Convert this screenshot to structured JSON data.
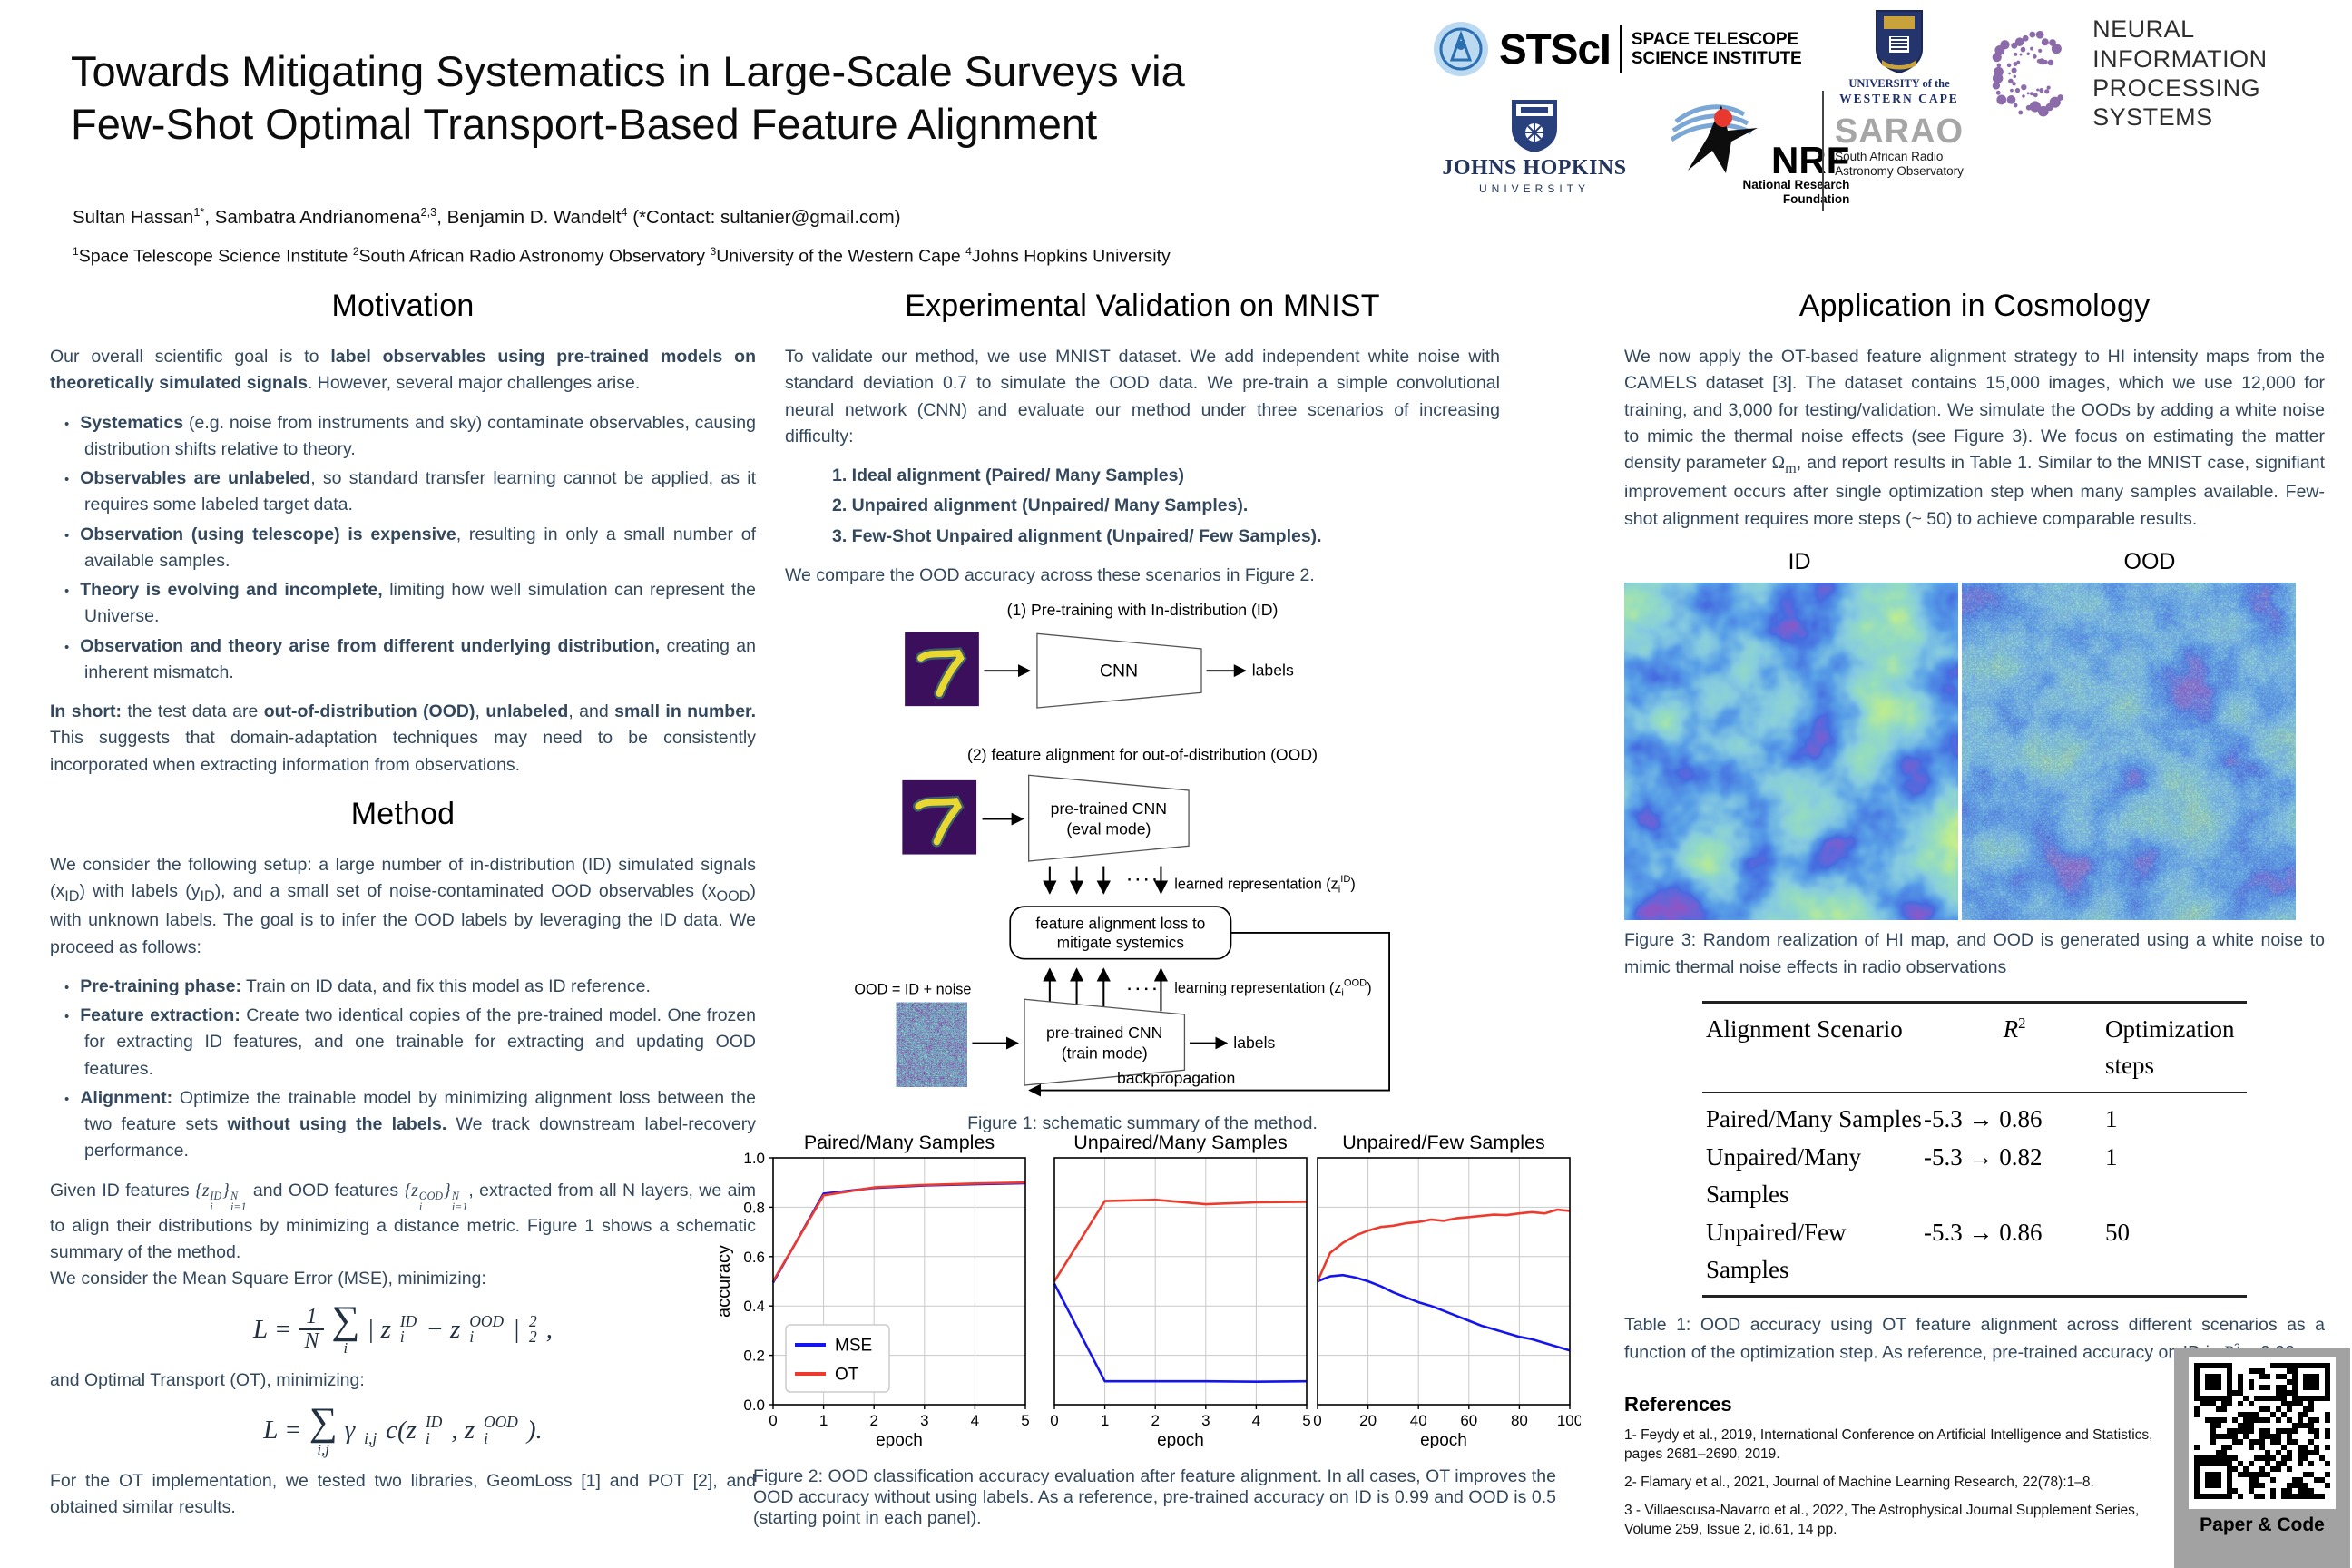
{
  "header": {
    "title_line1": "Towards Mitigating Systematics in Large-Scale Surveys via",
    "title_line2": "Few-Shot Optimal Transport-Based Feature Alignment",
    "authors": {
      "a1": "Sultan Hassan",
      "a1s": "1*",
      "a2": ", Sambatra Andrianomena",
      "a2s": "2,3",
      "a3": ", Benjamin D. Wandelt",
      "a3s": "4",
      "contact": "  (*Contact: sultanier@gmail.com)"
    },
    "affiliations": {
      "s1": "1",
      "t1": "Space Telescope Science Institute ",
      "s2": "2",
      "t2": "South African Radio Astronomy Observatory ",
      "s3": "3",
      "t3": "University of the Western Cape ",
      "s4": "4",
      "t4": "Johns Hopkins University"
    }
  },
  "logos": {
    "stsci": {
      "abbr": "STScI",
      "line1": "SPACE TELESCOPE",
      "line2": "SCIENCE INSTITUTE"
    },
    "jhu": {
      "name": "JOHNS HOPKINS",
      "sub": "UNIVERSITY"
    },
    "nrf": {
      "abbr": "NRF",
      "line1": "National Research",
      "line2": "Foundation"
    },
    "sarao": {
      "abbr": "SARAO",
      "line1": "South African Radio",
      "line2": "Astronomy Observatory"
    },
    "uwc": {
      "line1": "UNIVERSITY of the",
      "line2": "WESTERN CAPE"
    },
    "neurips": {
      "line1": "NEURAL INFORMATION",
      "line2": "PROCESSING SYSTEMS"
    }
  },
  "col1": {
    "heading": "Motivation",
    "p1a": "Our overall scientific goal is to ",
    "p1b": "label observables using pre-trained models on theoretically simulated signals",
    "p1c": ". However, several major challenges arise.",
    "bullets": [
      {
        "b": "Systematics",
        "t": " (e.g. noise from instruments and sky) contaminate observables, causing distribution shifts relative to theory."
      },
      {
        "b": "Observables are unlabeled",
        "t": ", so standard transfer learning cannot be applied, as it requires some labeled target data."
      },
      {
        "b": "Observation (using telescope) is expensive",
        "t": ", resulting in only a small number of available samples."
      },
      {
        "b": "Theory is evolving and incomplete,",
        "t": " limiting how well simulation can represent the Universe."
      },
      {
        "b": "Observation and theory arise from different underlying distribution,",
        "t": " creating an inherent mismatch."
      }
    ],
    "p2a": "In short:",
    "p2b": " the test data are ",
    "p2c": "out-of-distribution (OOD)",
    "p2d": ", ",
    "p2e": "unlabeled",
    "p2f": ", and ",
    "p2g": "small in number.",
    "p2h": " This suggests that domain-adaptation techniques may need to be consistently incorporated when extracting information from observations.",
    "heading2": "Method",
    "p3a": "We consider the following setup: a large number of in-distribution (ID) simulated signals (x",
    "p3s1": "ID",
    "p3b": ") with labels (y",
    "p3s2": "ID",
    "p3c": "), and a small set of noise-contaminated OOD observables (x",
    "p3s3": "OOD",
    "p3d": ") with unknown labels. The goal is to infer the OOD labels by leveraging the ID data. We proceed as follows:",
    "mbullets": [
      {
        "b": "Pre-training phase:",
        "t": " Train on ID data, and fix this model as ID reference.",
        "b2": "",
        "t2": ""
      },
      {
        "b": "Feature extraction:",
        "t": " Create two identical copies of the pre-trained model. One frozen for extracting ID features, and one trainable for extracting and updating OOD features.",
        "b2": "",
        "t2": ""
      },
      {
        "b": "Alignment:",
        "t": " Optimize the trainable model by minimizing alignment loss between the two feature sets ",
        "b2": "without using the labels.",
        "t2": " We track downstream label-recovery performance."
      }
    ],
    "p4a": "Given ID features ",
    "m1": "{z",
    "m1sup": "ID",
    "m1sub": "i",
    "m1c": "}",
    "m1osup": "N",
    "m1osub": "i=1",
    "p4b": " and OOD features ",
    "m2": "{z",
    "m2sup": "OOD",
    "m2sub": "i",
    "m2c": "}",
    "m2osup": "N",
    "m2osub": "i=1",
    "p4c": ", extracted from all N layers, we aim to align their distributions by minimizing a distance metric. Figure 1 shows a schematic summary of the method.",
    "p4d": "We consider the Mean Square Error (MSE), minimizing:",
    "eq1": {
      "lhs": "L =",
      "num": "1",
      "den": "N",
      "op": "∑",
      "opsub": "i",
      "t1": "| z",
      "z1sup": "ID",
      "z1sub": "i",
      "t2": "− z",
      "z2sup": "OOD",
      "z2sub": "i",
      "t3": "|",
      "esup": "2",
      "esub": "2",
      "t4": ","
    },
    "p5": "and Optimal Transport (OT), minimizing:",
    "eq2": {
      "lhs": "L =",
      "op": "∑",
      "opsub": "i,j",
      "g": "γ",
      "gsub": "i,j",
      "t1": "c(z",
      "z1sup": "ID",
      "z1sub": "i",
      "t2": ", z",
      "z2sup": "OOD",
      "z2sub": "i",
      "t3": ")."
    },
    "p6": "For the OT implementation, we tested two libraries, GeomLoss [1] and POT [2], and obtained similar results."
  },
  "col2": {
    "heading": "Experimental Validation on MNIST",
    "p1": "To validate our method, we use MNIST dataset. We add independent white noise with standard deviation 0.7 to simulate the OOD data. We pre-train a simple convolutional neural network (CNN) and evaluate our method under three scenarios of increasing difficulty:",
    "items": [
      "1. Ideal alignment (Paired/ Many Samples)",
      "2. Unpaired alignment (Unpaired/ Many Samples).",
      "3. Few-Shot Unpaired alignment (Unpaired/ Few Samples)."
    ],
    "p2": "We compare the OOD accuracy across these scenarios in Figure 2.",
    "fig1_caption": "Figure 1:  schematic summary of the method.",
    "fig2_caption": "Figure 2:  OOD classification accuracy evaluation after feature alignment. In all cases, OT improves the OOD accuracy without using labels. As a reference, pre-trained accuracy on ID is 0.99 and OOD is 0.5 (starting point in each panel)."
  },
  "fig1": {
    "step1": "(1) Pre-training with In-distribution (ID)",
    "cnn": "CNN",
    "labels1": "labels",
    "step2": "(2) feature alignment for out-of-distribution (OOD)",
    "pt1a": "pre-trained CNN",
    "pt1b": "(eval mode)",
    "learned_a": "learned representation (z",
    "learned_sub": "i",
    "learned_sup": "ID",
    "learned_b": ")",
    "loss1": "feature alignment loss to",
    "loss2": "mitigate systemics",
    "learning_a": "learning representation (z",
    "learning_sub": "i",
    "learning_sup": "OOD",
    "learning_b": ")",
    "ood": "OOD = ID + noise",
    "pt2a": "pre-trained CNN",
    "pt2b": "(train mode)",
    "labels2": "labels",
    "backprop": "backpropagation",
    "dots1": "∙ ∙ ∙ ∙",
    "dots2": "∙ ∙ ∙ ∙"
  },
  "chart_data": [
    {
      "type": "line",
      "title": "Paired/Many Samples",
      "xlabel": "epoch",
      "ylabel": "accuracy",
      "xlim": [
        0,
        5
      ],
      "ylim": [
        0.0,
        1.0
      ],
      "grid": true,
      "legend_position": "lower left",
      "xticks": [
        0,
        1,
        2,
        3,
        4,
        5
      ],
      "yticks": [
        "0.0",
        "0.2",
        "0.4",
        "0.6",
        "0.8",
        "1.0"
      ],
      "x": [
        0,
        1,
        2,
        3,
        4,
        5
      ],
      "series": [
        {
          "name": "MSE",
          "color": "#1414f0",
          "values": [
            0.495,
            0.855,
            0.878,
            0.888,
            0.893,
            0.897
          ]
        },
        {
          "name": "OT",
          "color": "#ee3a2c",
          "values": [
            0.5,
            0.848,
            0.88,
            0.89,
            0.896,
            0.9
          ]
        }
      ]
    },
    {
      "type": "line",
      "title": "Unpaired/Many Samples",
      "xlabel": "epoch",
      "xlim": [
        0,
        5
      ],
      "ylim": [
        0.0,
        1.0
      ],
      "grid": true,
      "xticks": [
        0,
        1,
        2,
        3,
        4,
        5
      ],
      "x": [
        0,
        1,
        2,
        3,
        4,
        5
      ],
      "series": [
        {
          "name": "MSE",
          "color": "#1414f0",
          "values": [
            0.49,
            0.095,
            0.095,
            0.095,
            0.093,
            0.095
          ]
        },
        {
          "name": "OT",
          "color": "#ee3a2c",
          "values": [
            0.5,
            0.825,
            0.83,
            0.812,
            0.82,
            0.822
          ]
        }
      ]
    },
    {
      "type": "line",
      "title": "Unpaired/Few Samples",
      "xlabel": "epoch",
      "xlim": [
        0,
        100
      ],
      "ylim": [
        0.0,
        1.0
      ],
      "grid": true,
      "xticks": [
        0,
        20,
        40,
        60,
        80,
        100
      ],
      "x": [
        0,
        5,
        10,
        15,
        20,
        25,
        30,
        35,
        40,
        45,
        50,
        55,
        60,
        65,
        70,
        75,
        80,
        85,
        90,
        95,
        100
      ],
      "series": [
        {
          "name": "MSE",
          "color": "#1414f0",
          "values": [
            0.5,
            0.52,
            0.525,
            0.515,
            0.5,
            0.48,
            0.455,
            0.435,
            0.415,
            0.4,
            0.38,
            0.36,
            0.34,
            0.32,
            0.305,
            0.29,
            0.275,
            0.265,
            0.25,
            0.235,
            0.22
          ]
        },
        {
          "name": "OT",
          "color": "#ee3a2c",
          "values": [
            0.5,
            0.615,
            0.655,
            0.685,
            0.705,
            0.72,
            0.725,
            0.735,
            0.74,
            0.75,
            0.745,
            0.755,
            0.76,
            0.765,
            0.77,
            0.768,
            0.775,
            0.78,
            0.775,
            0.79,
            0.785
          ]
        }
      ]
    }
  ],
  "col3": {
    "heading": "Application in Cosmology",
    "p1a": "We now apply the OT-based feature alignment strategy to HI intensity maps from the CAMELS dataset [3]. The dataset contains 15,000 images, which we use 12,000 for training, and 3,000 for testing/validation. We simulate the OODs by adding a white noise to mimic the thermal noise effects (see Figure 3). We focus on estimating the matter density parameter ",
    "omega": "Ω",
    "omegasub": "m",
    "p1b": ", and report results in Table 1. Similar to the MNIST case, signifiant improvement occurs after single optimization step when many samples available. Few-shot alignment requires more steps (~ 50) to achieve comparable results.",
    "id_label": "ID",
    "ood_label": "OOD",
    "fig3_caption": "Figure 3:   Random realization of HI map, and OOD is generated using a white noise to mimic thermal noise effects in radio observations"
  },
  "table1": {
    "h1": "Alignment Scenario",
    "h2r": "R",
    "h2sup": "2",
    "h3": "Optimization steps",
    "rows": [
      {
        "scenario": "Paired/Many Samples",
        "r2": "-5.3 → 0.86",
        "steps": "1"
      },
      {
        "scenario": "Unpaired/Many Samples",
        "r2": "-5.3 → 0.82",
        "steps": "1"
      },
      {
        "scenario": "Unpaired/Few Samples",
        "r2": "-5.3 → 0.86",
        "steps": "50"
      }
    ],
    "cap_a": "Table 1: OOD accuracy using OT feature alignment across different scenarios as a function of the optimization step. As reference, pre-trained accuracy on ID is ",
    "cap_r": "R",
    "cap_sup": "2",
    "cap_b": " = 0.92."
  },
  "references": {
    "heading": "References",
    "items": [
      "1- Feydy et al., 2019, International Conference on Artificial Intelligence and Statistics, pages 2681–2690, 2019.",
      "2- Flamary et al., 2021,  Journal of Machine Learning Research, 22(78):1–8.",
      "3 - Villaescusa-Navarro et al., 2022, The Astrophysical Journal Supplement Series, Volume 259, Issue 2, id.61, 14 pp."
    ]
  },
  "qr": {
    "label": "Paper & Code"
  },
  "colors": {
    "body_text": "#33485c",
    "mse_line": "#1414f0",
    "ot_line": "#ee3a2c",
    "qr_bg": "#a2a2a2"
  }
}
